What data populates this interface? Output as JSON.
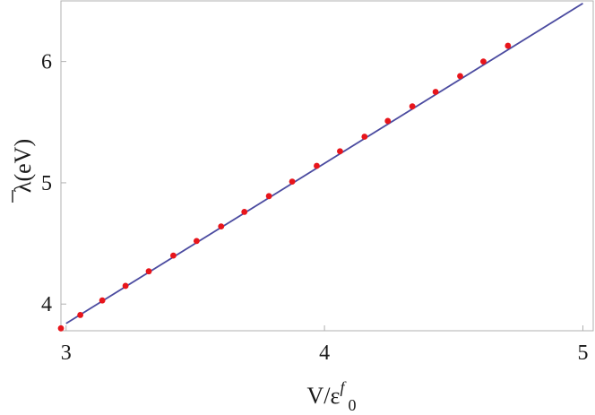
{
  "chart_data": {
    "type": "scatter",
    "title": "",
    "xlabel": {
      "main": "V/ε",
      "sup": "f",
      "sub": "0"
    },
    "ylabel": {
      "main": "λ",
      "unit": "(eV)"
    },
    "xlim": [
      2.98,
      5.04
    ],
    "ylim": [
      3.78,
      6.5
    ],
    "x_ticks": [
      "3",
      "4",
      "5"
    ],
    "y_ticks": [
      "4",
      "5",
      "6"
    ],
    "grid": false,
    "fit_line": {
      "x": [
        3.0,
        5.0
      ],
      "y": [
        3.84,
        6.48
      ],
      "color": "#4b4ba0"
    },
    "points": {
      "color": "#e8151b",
      "x": [
        2.98,
        3.055,
        3.14,
        3.23,
        3.32,
        3.415,
        3.505,
        3.6,
        3.69,
        3.785,
        3.875,
        3.97,
        4.06,
        4.155,
        4.245,
        4.34,
        4.43,
        4.525,
        4.615,
        4.71
      ],
      "y": [
        3.8,
        3.91,
        4.03,
        4.15,
        4.27,
        4.4,
        4.52,
        4.64,
        4.76,
        4.89,
        5.01,
        5.14,
        5.26,
        5.38,
        5.51,
        5.63,
        5.75,
        5.88,
        6.0,
        6.13
      ]
    }
  }
}
